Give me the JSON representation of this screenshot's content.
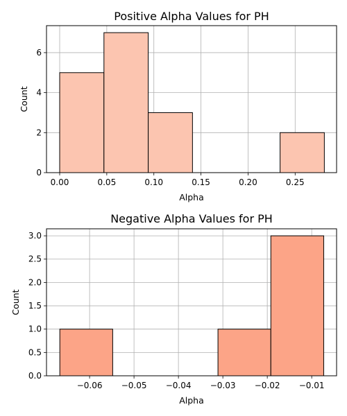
{
  "chart_data": [
    {
      "type": "histogram",
      "title": "Positive Alpha Values for PH",
      "xlabel": "Alpha",
      "ylabel": "Count",
      "xlim": [
        -0.014,
        0.294
      ],
      "ylim": [
        0,
        7.35
      ],
      "xticks": [
        0.0,
        0.05,
        0.1,
        0.15,
        0.2,
        0.25
      ],
      "xtick_labels": [
        "0.00",
        "0.05",
        "0.10",
        "0.15",
        "0.20",
        "0.25"
      ],
      "yticks": [
        0,
        2,
        4,
        6
      ],
      "ytick_labels": [
        "0",
        "2",
        "4",
        "6"
      ],
      "bins": [
        {
          "x0": 0.0,
          "x1": 0.047,
          "count": 5
        },
        {
          "x0": 0.047,
          "x1": 0.094,
          "count": 7
        },
        {
          "x0": 0.094,
          "x1": 0.141,
          "count": 3
        },
        {
          "x0": 0.141,
          "x1": 0.187,
          "count": 0
        },
        {
          "x0": 0.187,
          "x1": 0.234,
          "count": 0
        },
        {
          "x0": 0.234,
          "x1": 0.281,
          "count": 2
        }
      ],
      "bar_color": "#fcc5b0",
      "edge_color": "#000000",
      "grid": true
    },
    {
      "type": "histogram",
      "title": "Negative Alpha Values for PH",
      "xlabel": "Alpha",
      "ylabel": "Count",
      "xlim": [
        -0.0697,
        -0.0044
      ],
      "ylim": [
        0,
        3.15
      ],
      "xticks": [
        -0.06,
        -0.05,
        -0.04,
        -0.03,
        -0.02,
        -0.01
      ],
      "xtick_labels": [
        "−0.06",
        "−0.05",
        "−0.04",
        "−0.03",
        "−0.02",
        "−0.01"
      ],
      "yticks": [
        0.0,
        0.5,
        1.0,
        1.5,
        2.0,
        2.5,
        3.0
      ],
      "ytick_labels": [
        "0.0",
        "0.5",
        "1.0",
        "1.5",
        "2.0",
        "2.5",
        "3.0"
      ],
      "bins": [
        {
          "x0": -0.0667,
          "x1": -0.0548,
          "count": 1
        },
        {
          "x0": -0.0548,
          "x1": -0.043,
          "count": 0
        },
        {
          "x0": -0.043,
          "x1": -0.0311,
          "count": 0
        },
        {
          "x0": -0.0311,
          "x1": -0.0192,
          "count": 1
        },
        {
          "x0": -0.0192,
          "x1": -0.0073,
          "count": 3
        }
      ],
      "bar_color": "#fca487",
      "edge_color": "#000000",
      "grid": true
    }
  ]
}
